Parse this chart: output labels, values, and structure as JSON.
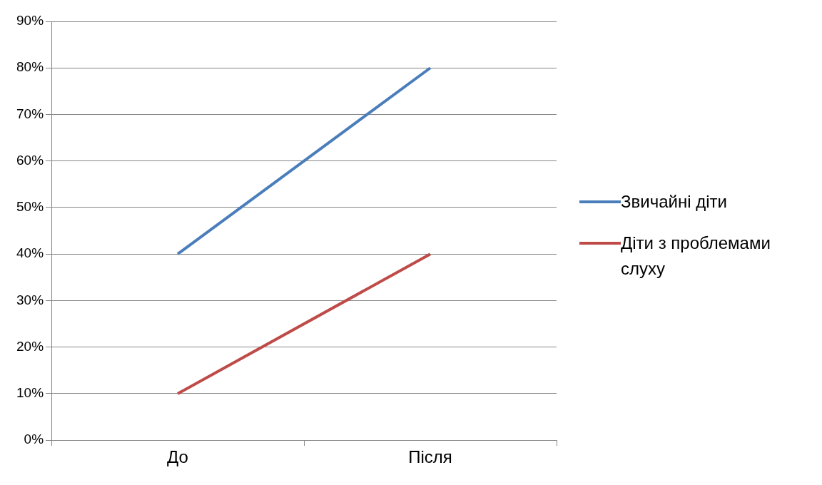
{
  "chart_data": {
    "type": "line",
    "categories": [
      "До",
      "Після"
    ],
    "series": [
      {
        "name": "Звичайні діти",
        "color": "#4a7ebb",
        "values": [
          40,
          80
        ]
      },
      {
        "name": "Діти з проблемами слуху",
        "color": "#be4b48",
        "values": [
          10,
          40
        ]
      }
    ],
    "ylim": [
      0,
      90
    ],
    "yticks": [
      {
        "value": 0,
        "label": "0%"
      },
      {
        "value": 10,
        "label": "10%"
      },
      {
        "value": 20,
        "label": "20%"
      },
      {
        "value": 30,
        "label": "30%"
      },
      {
        "value": 40,
        "label": "40%"
      },
      {
        "value": 50,
        "label": "50%"
      },
      {
        "value": 60,
        "label": "60%"
      },
      {
        "value": 70,
        "label": "70%"
      },
      {
        "value": 80,
        "label": "80%"
      },
      {
        "value": 90,
        "label": "90%"
      }
    ],
    "grid": "y",
    "legend": "right",
    "marker": "none",
    "line_style": "solid"
  }
}
